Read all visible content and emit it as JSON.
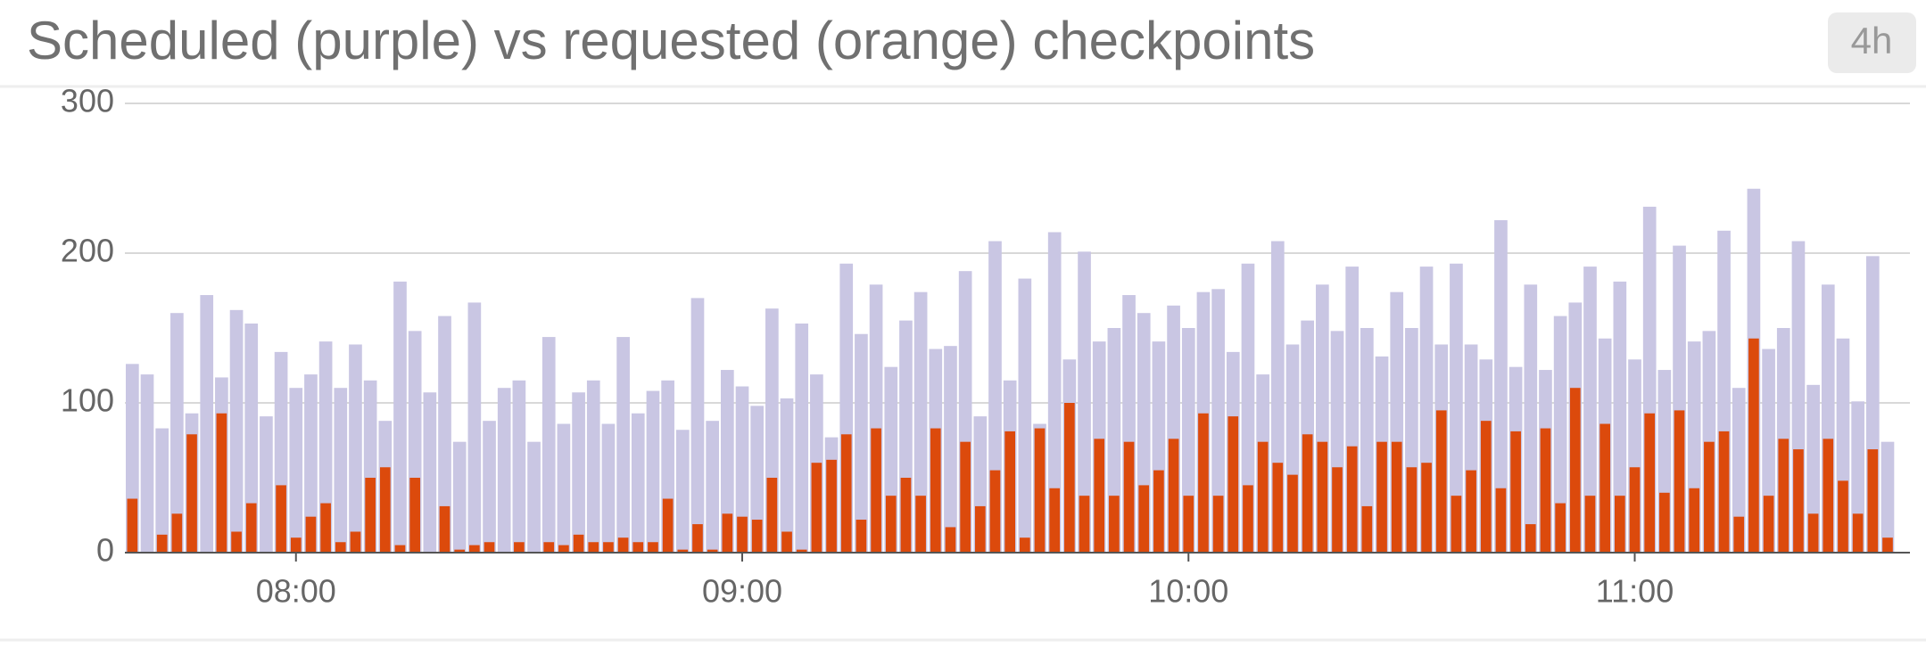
{
  "chart_data": {
    "type": "bar",
    "title": "Scheduled (purple) vs requested (orange) checkpoints",
    "x": [
      458,
      460,
      462,
      464,
      466,
      468,
      470,
      472,
      474,
      476,
      478,
      480,
      482,
      484,
      486,
      488,
      490,
      492,
      494,
      496,
      498,
      500,
      502,
      504,
      506,
      508,
      510,
      512,
      514,
      516,
      518,
      520,
      522,
      524,
      526,
      528,
      530,
      532,
      534,
      536,
      538,
      540,
      542,
      544,
      546,
      548,
      550,
      552,
      554,
      556,
      558,
      560,
      562,
      564,
      566,
      568,
      570,
      572,
      574,
      576,
      578,
      580,
      582,
      584,
      586,
      588,
      590,
      592,
      594,
      596,
      598,
      600,
      602,
      604,
      606,
      608,
      610,
      612,
      614,
      616,
      618,
      620,
      622,
      624,
      626,
      628,
      630,
      632,
      634,
      636,
      638,
      640,
      642,
      644,
      646,
      648,
      650,
      652,
      654,
      656,
      658,
      660,
      662,
      664,
      666,
      668,
      670,
      672,
      674,
      676,
      678,
      680,
      682,
      684,
      686,
      688,
      690,
      692,
      694
    ],
    "series": [
      {
        "name": "Scheduled",
        "color": "#c9c6e3",
        "values": [
          126,
          119,
          83,
          160,
          93,
          172,
          117,
          162,
          153,
          91,
          134,
          110,
          119,
          141,
          110,
          139,
          115,
          88,
          181,
          148,
          107,
          158,
          74,
          167,
          88,
          110,
          115,
          74,
          144,
          86,
          107,
          115,
          86,
          144,
          93,
          108,
          115,
          82,
          170,
          88,
          122,
          111,
          98,
          163,
          103,
          153,
          119,
          77,
          193,
          146,
          179,
          124,
          155,
          174,
          136,
          138,
          188,
          91,
          208,
          115,
          183,
          86,
          214,
          129,
          201,
          141,
          150,
          172,
          160,
          141,
          165,
          150,
          174,
          176,
          134,
          193,
          119,
          208,
          139,
          155,
          179,
          148,
          191,
          150,
          131,
          174,
          150,
          191,
          139,
          193,
          139,
          129,
          222,
          124,
          179,
          122,
          158,
          167,
          191,
          143,
          181,
          129,
          231,
          122,
          205,
          141,
          148,
          215,
          110,
          243,
          136,
          150,
          208,
          112,
          179,
          143,
          101,
          198,
          74
        ]
      },
      {
        "name": "Requested",
        "color": "#dc4a0c",
        "values": [
          36,
          0,
          12,
          26,
          79,
          0,
          93,
          14,
          33,
          0,
          45,
          10,
          24,
          33,
          7,
          14,
          50,
          57,
          5,
          50,
          0,
          31,
          2,
          5,
          7,
          0,
          7,
          0,
          7,
          5,
          12,
          7,
          7,
          10,
          7,
          7,
          36,
          2,
          19,
          2,
          26,
          24,
          22,
          50,
          14,
          2,
          60,
          62,
          79,
          22,
          83,
          38,
          50,
          38,
          83,
          17,
          74,
          31,
          55,
          81,
          10,
          83,
          43,
          100,
          38,
          76,
          38,
          74,
          45,
          55,
          76,
          38,
          93,
          38,
          91,
          45,
          74,
          60,
          52,
          79,
          74,
          57,
          71,
          31,
          74,
          74,
          57,
          60,
          95,
          38,
          55,
          88,
          43,
          81,
          19,
          83,
          33,
          110,
          38,
          86,
          38,
          57,
          93,
          40,
          95,
          43,
          74,
          81,
          24,
          143,
          38,
          76,
          69,
          26,
          76,
          48,
          26,
          69,
          10
        ]
      }
    ],
    "xlim": [
      457,
      697
    ],
    "xticks": [
      {
        "value": 480,
        "label": "08:00"
      },
      {
        "value": 540,
        "label": "09:00"
      },
      {
        "value": 600,
        "label": "10:00"
      },
      {
        "value": 660,
        "label": "11:00"
      }
    ],
    "ylim": [
      0,
      300
    ],
    "yticks": [
      0,
      100,
      200,
      300
    ],
    "grid": true
  },
  "time_range": "4h"
}
